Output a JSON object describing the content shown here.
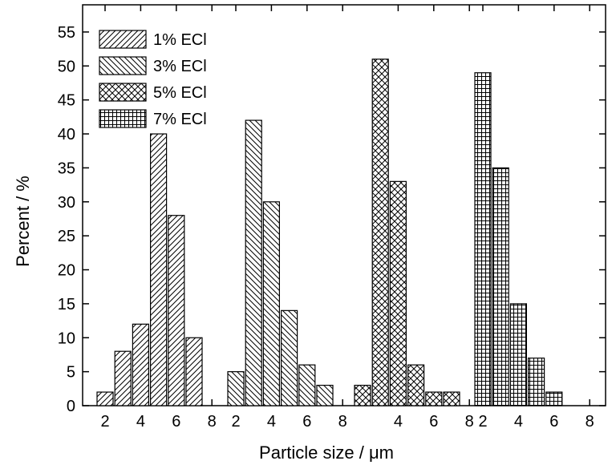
{
  "chart_data": {
    "type": "bar",
    "xlabel": "Particle size / μm",
    "ylabel": "Percent / %",
    "ylim": [
      0,
      59
    ],
    "yticks": [
      0,
      5,
      10,
      15,
      20,
      25,
      30,
      35,
      40,
      45,
      50,
      55
    ],
    "grid": false,
    "legend_position": "top-left",
    "panels": [
      {
        "series": "1% ECl",
        "xticks": [
          2,
          4,
          6,
          8
        ],
        "x": [
          2,
          3,
          4,
          5,
          6,
          7
        ],
        "values": [
          2,
          8,
          12,
          40,
          28,
          10
        ]
      },
      {
        "series": "3% ECl",
        "xticks": [
          2,
          4,
          6,
          8
        ],
        "x": [
          2,
          3,
          4,
          5,
          6,
          7
        ],
        "values": [
          5,
          42,
          30,
          14,
          6,
          3
        ]
      },
      {
        "series": "5% ECl",
        "xticks": [
          4,
          6,
          8
        ],
        "x": [
          2,
          3,
          4,
          5,
          6,
          7
        ],
        "values": [
          3,
          51,
          33,
          6,
          2,
          2
        ]
      },
      {
        "series": "7% ECl",
        "xticks": [
          2,
          4,
          6,
          8
        ],
        "x": [
          2,
          3,
          4,
          5,
          6,
          7
        ],
        "values": [
          49,
          35,
          15,
          7,
          2,
          null
        ]
      }
    ],
    "series": [
      {
        "name": "1% ECl",
        "pattern": "diagonal-up"
      },
      {
        "name": "3% ECl",
        "pattern": "diagonal-down"
      },
      {
        "name": "5% ECl",
        "pattern": "crosshatch"
      },
      {
        "name": "7% ECl",
        "pattern": "grid"
      }
    ]
  }
}
